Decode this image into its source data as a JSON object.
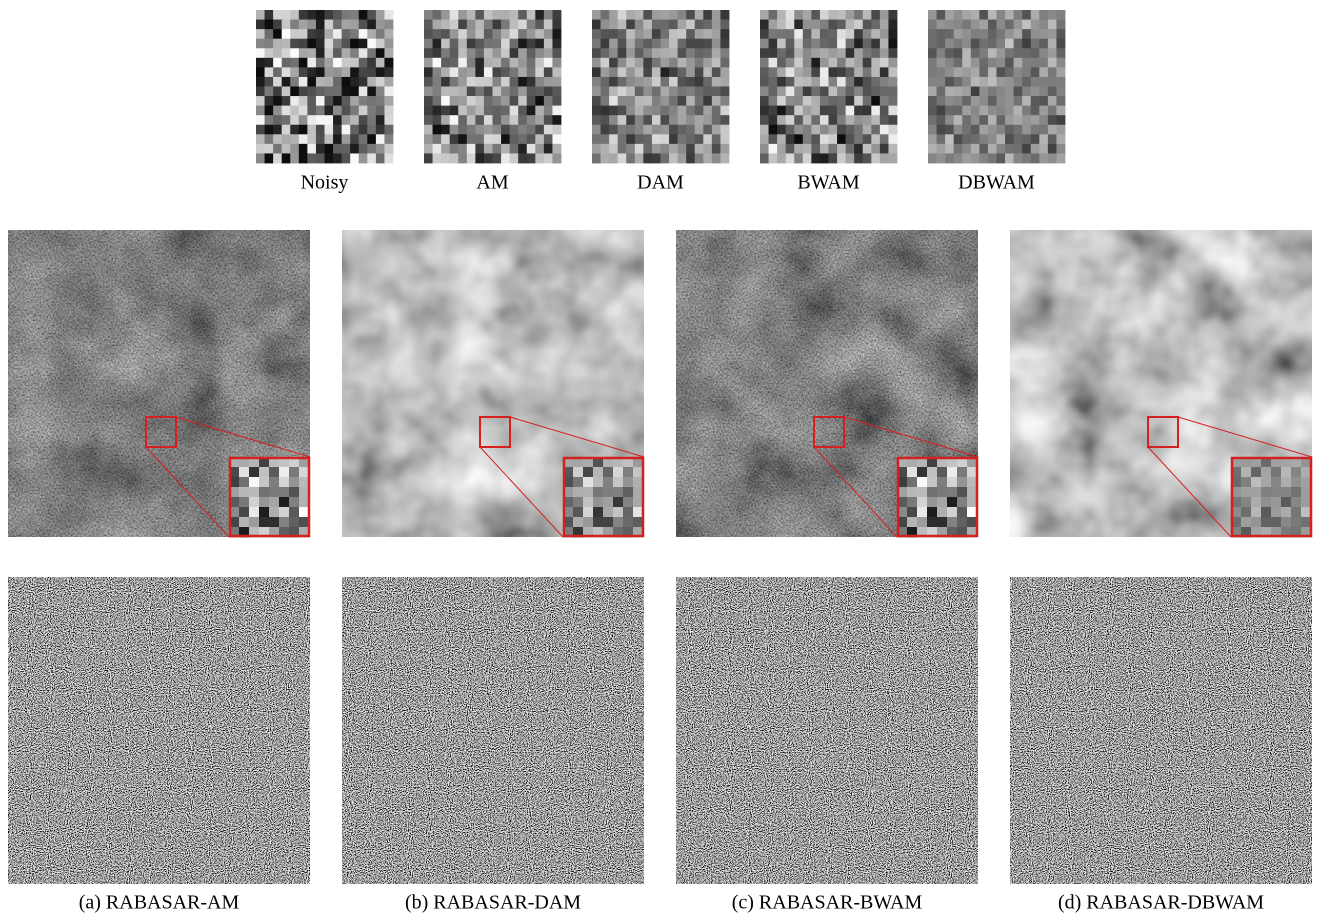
{
  "patch_labels": [
    "Noisy",
    "AM",
    "DAM",
    "BWAM",
    "DBWAM"
  ],
  "captions": [
    "(a) RABASAR-AM",
    "(b) RABASAR-DAM",
    "(c) RABASAR-BWAM",
    "(d) RABASAR-DBWAM"
  ]
}
